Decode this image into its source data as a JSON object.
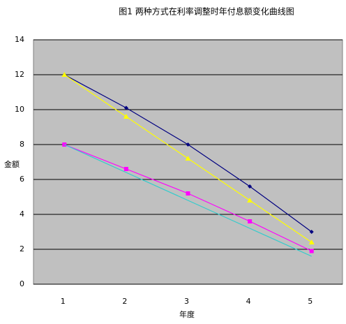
{
  "chart_data": {
    "type": "line",
    "title": "图1 两种方式在利率调整时年付息额变化曲线图",
    "x_label": "年度",
    "y_label": "金额",
    "categories": [
      "1",
      "2",
      "3",
      "4",
      "5"
    ],
    "series": [
      {
        "color": "#000080",
        "marker": "diamond",
        "values": [
          12,
          10.1,
          8.0,
          5.6,
          3.0
        ]
      },
      {
        "color": "#ffff00",
        "marker": "triangle",
        "values": [
          12,
          9.6,
          7.2,
          4.8,
          2.4
        ]
      },
      {
        "color": "#ff00ff",
        "marker": "square",
        "values": [
          8,
          6.6,
          5.2,
          3.6,
          1.9
        ]
      },
      {
        "color": "#33cccc",
        "marker": "none",
        "values": [
          8,
          6.4,
          4.8,
          3.2,
          1.6
        ]
      }
    ],
    "ylim": [
      0,
      14
    ],
    "yticks": [
      0,
      2,
      4,
      6,
      8,
      10,
      12,
      14
    ],
    "grid": true,
    "background": "#c0c0c0"
  }
}
